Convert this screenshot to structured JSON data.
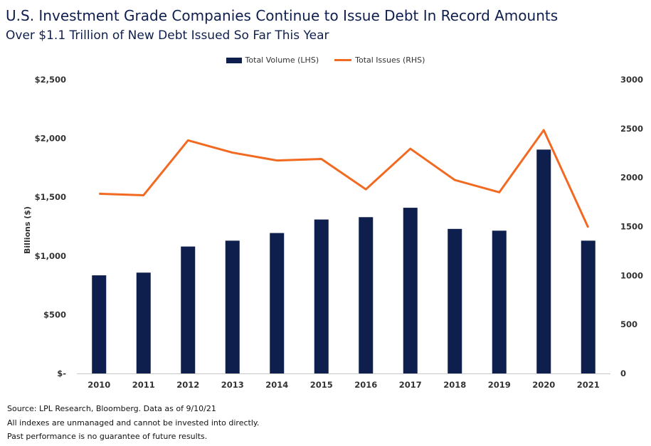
{
  "header": {
    "title": "U.S. Investment Grade Companies Continue to Issue Debt In Record Amounts",
    "subtitle": "Over $1.1 Trillion of New Debt Issued So Far This Year"
  },
  "footer": {
    "source": "Source: LPL Research, Bloomberg. Data as of 9/10/21",
    "note1": "All indexes are unmanaged and cannot be invested into directly.",
    "note2": "Past performance is no guarantee of future results."
  },
  "colors": {
    "bar": "#0f1f4d",
    "line": "#f26a21",
    "axis": "#c8c8c8"
  },
  "chart_data": {
    "type": "bar",
    "categories": [
      "2010",
      "2011",
      "2012",
      "2013",
      "2014",
      "2015",
      "2016",
      "2017",
      "2018",
      "2019",
      "2020",
      "2021"
    ],
    "series": [
      {
        "name": "Total Volume (LHS)",
        "type": "bar",
        "axis": "left",
        "values": [
          835,
          858,
          1080,
          1130,
          1195,
          1310,
          1330,
          1410,
          1230,
          1215,
          1905,
          1130
        ]
      },
      {
        "name": "Total Issues (RHS)",
        "type": "line",
        "axis": "right",
        "values": [
          1835,
          1820,
          2380,
          2255,
          2175,
          2190,
          1880,
          2295,
          1975,
          1850,
          2485,
          1490
        ]
      }
    ],
    "ylabel": "Billions ($)",
    "ylim_left": [
      0,
      2500
    ],
    "ylim_right": [
      0,
      3000
    ],
    "left_ticks": [
      "$-",
      "$500",
      "$1,000",
      "$1,500",
      "$2,000",
      "$2,500"
    ],
    "right_ticks": [
      "0",
      "500",
      "1000",
      "1500",
      "2000",
      "2500",
      "3000"
    ],
    "legend_position": "top-center",
    "grid": false
  }
}
